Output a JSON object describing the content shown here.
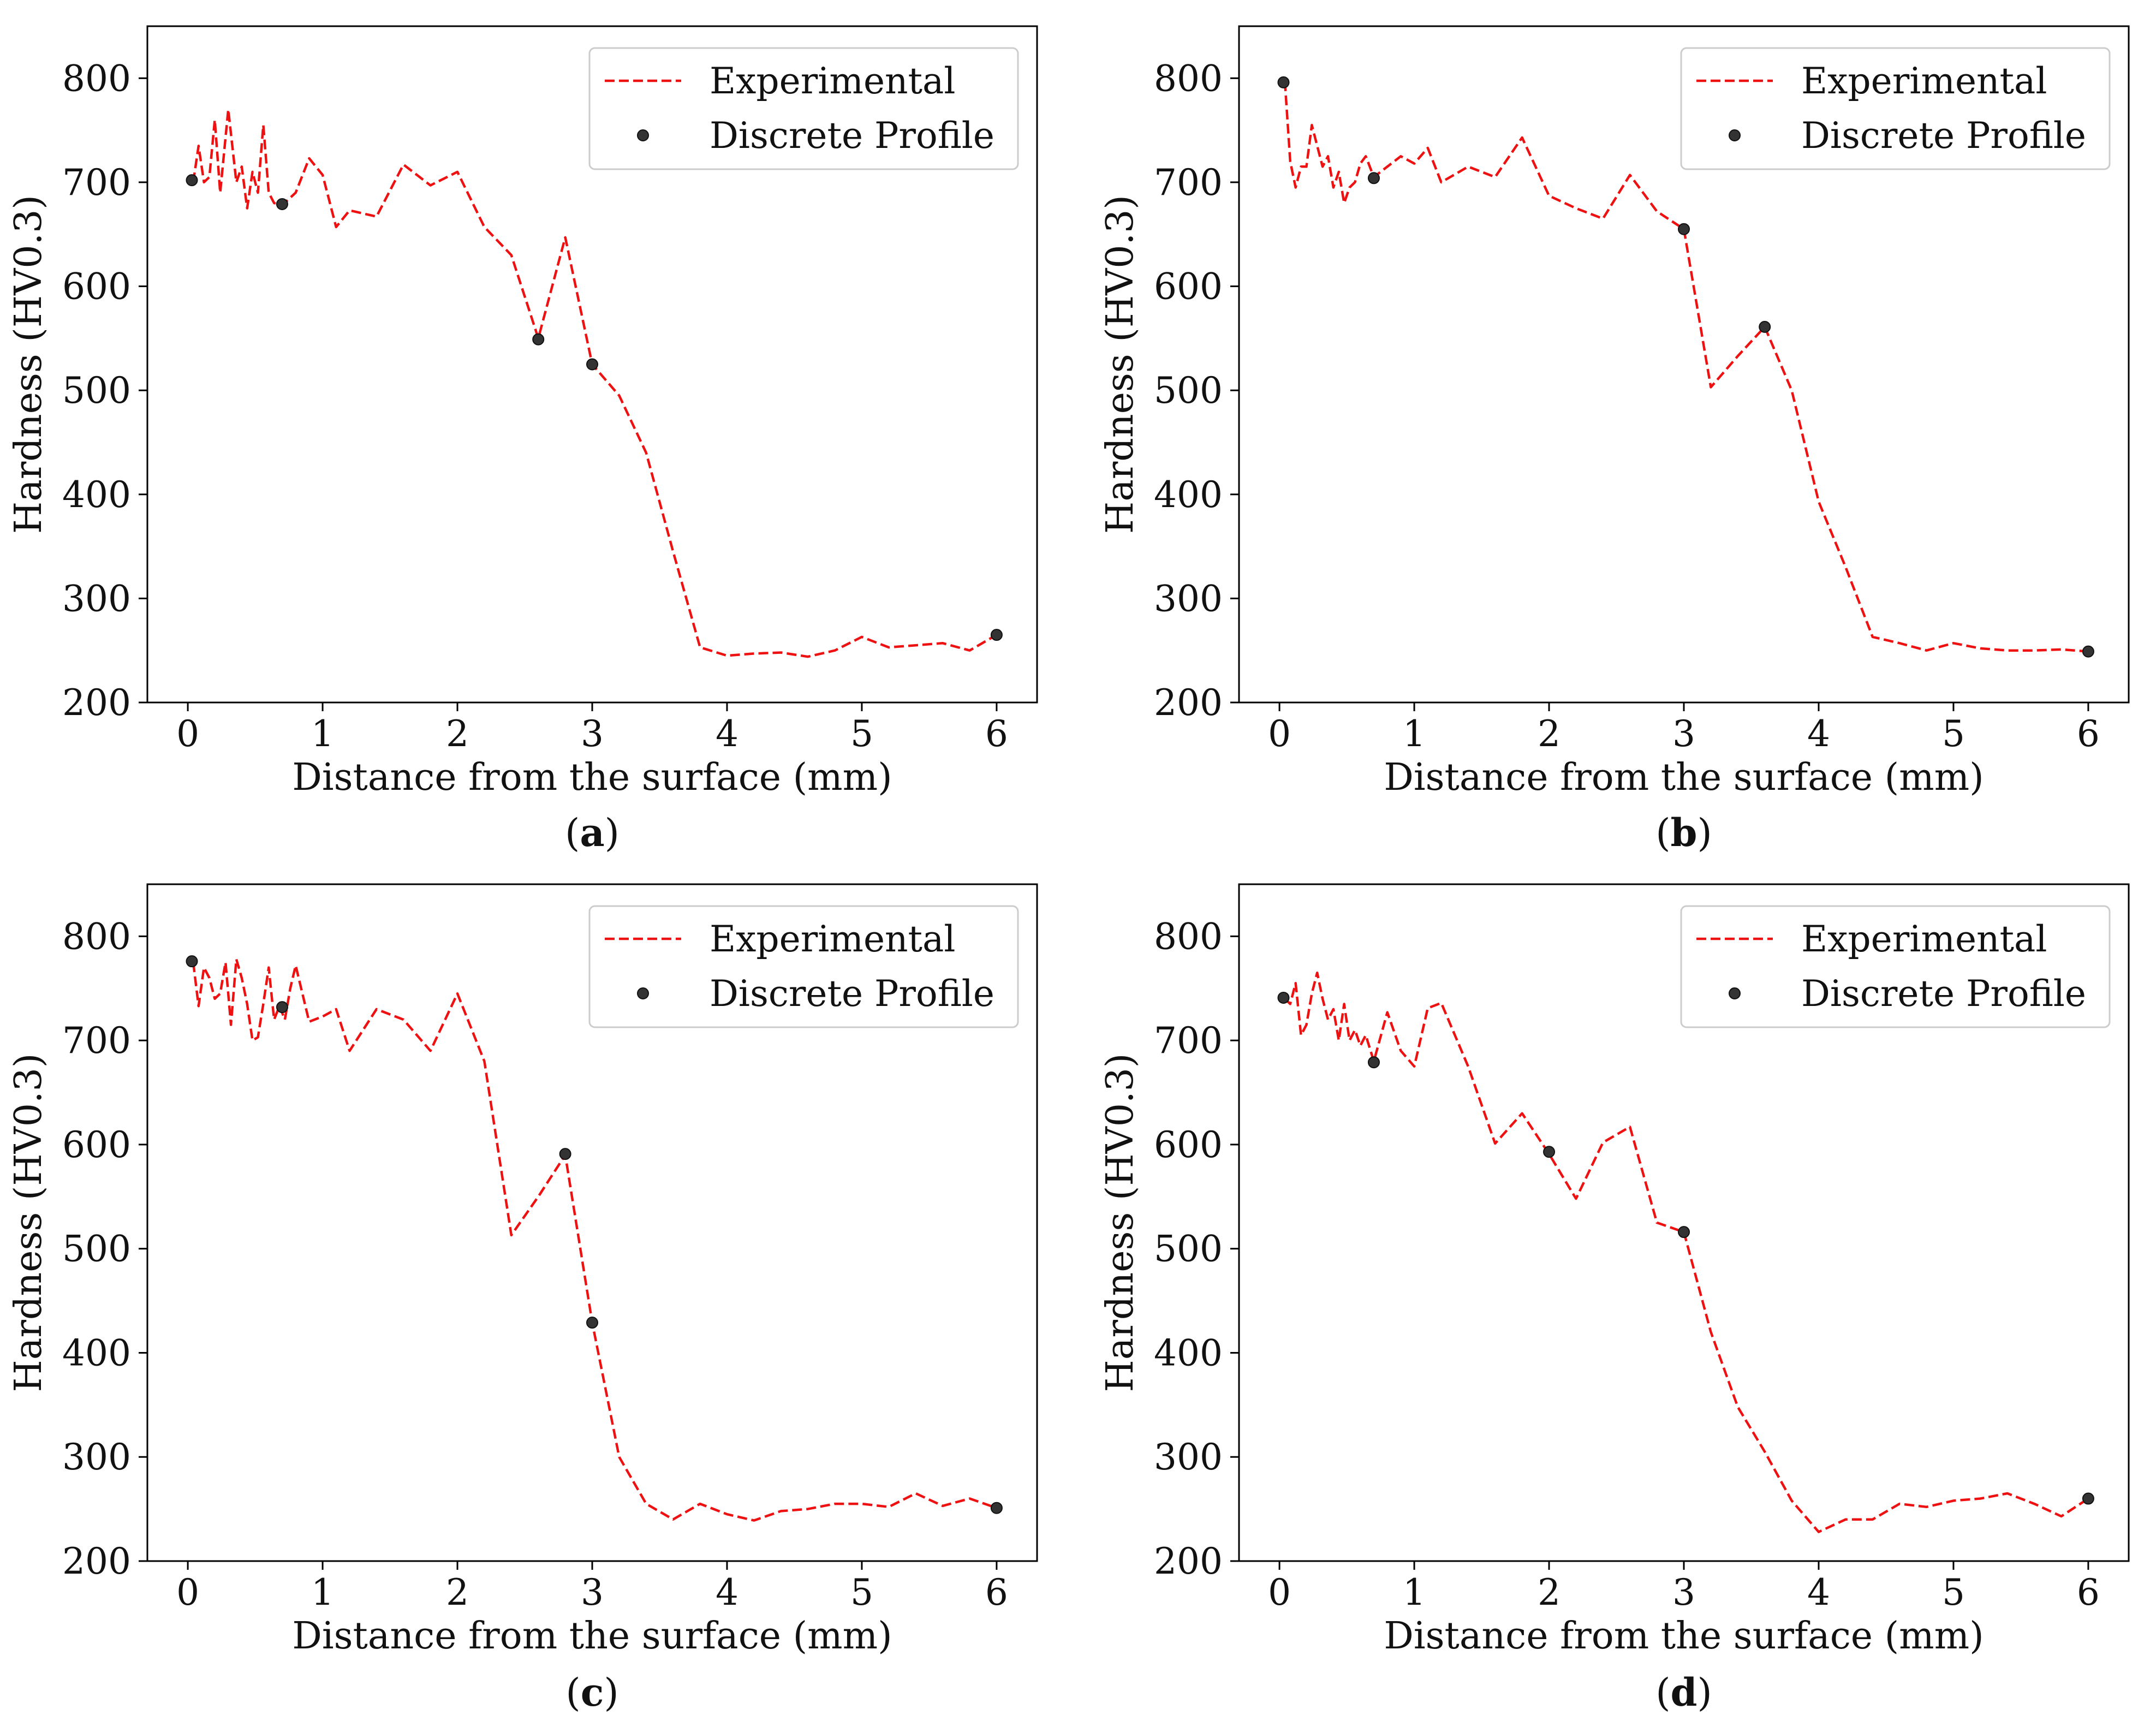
{
  "figure": {
    "series_labels": {
      "line": "Experimental",
      "points": "Discrete Profile"
    },
    "colors": {
      "line": "#ee1111",
      "points_fill": "#333333",
      "points_edge": "#111111",
      "frame": "#000000"
    }
  },
  "chart_data": [
    {
      "id": "a",
      "caption": "a",
      "type": "line",
      "xlabel": "Distance from the surface (mm)",
      "ylabel": "Hardness (HV0.3)",
      "xlim": [
        -0.3,
        6.3
      ],
      "ylim": [
        200,
        850
      ],
      "xticks": [
        0,
        1,
        2,
        3,
        4,
        5,
        6
      ],
      "yticks": [
        200,
        300,
        400,
        500,
        600,
        700,
        800
      ],
      "legend": "top-right",
      "series": [
        {
          "name": "Experimental",
          "style": "dashed",
          "x": [
            0.04,
            0.08,
            0.12,
            0.16,
            0.2,
            0.24,
            0.3,
            0.36,
            0.4,
            0.44,
            0.48,
            0.52,
            0.56,
            0.6,
            0.64,
            0.7,
            0.8,
            0.9,
            1.0,
            1.1,
            1.2,
            1.4,
            1.6,
            1.8,
            2.0,
            2.2,
            2.4,
            2.6,
            2.8,
            3.0,
            3.2,
            3.4,
            3.6,
            3.8,
            4.0,
            4.2,
            4.4,
            4.6,
            4.8,
            5.0,
            5.2,
            5.4,
            5.6,
            5.8,
            6.0
          ],
          "y": [
            700,
            735,
            700,
            705,
            760,
            690,
            770,
            700,
            715,
            675,
            710,
            690,
            755,
            690,
            680,
            678,
            690,
            723,
            707,
            657,
            673,
            667,
            717,
            697,
            710,
            657,
            630,
            550,
            647,
            525,
            495,
            440,
            345,
            253,
            245,
            247,
            248,
            244,
            250,
            263,
            253,
            255,
            257,
            250,
            265
          ]
        },
        {
          "name": "Discrete Profile",
          "style": "points",
          "x": [
            0.03,
            0.7,
            2.6,
            3.0,
            6.0
          ],
          "y": [
            702,
            679,
            549,
            525,
            265
          ]
        }
      ]
    },
    {
      "id": "b",
      "caption": "b",
      "type": "line",
      "xlabel": "Distance from the surface (mm)",
      "ylabel": "Hardness (HV0.3)",
      "xlim": [
        -0.3,
        6.3
      ],
      "ylim": [
        200,
        850
      ],
      "xticks": [
        0,
        1,
        2,
        3,
        4,
        5,
        6
      ],
      "yticks": [
        200,
        300,
        400,
        500,
        600,
        700,
        800
      ],
      "legend": "top-right",
      "series": [
        {
          "name": "Experimental",
          "style": "dashed",
          "x": [
            0.04,
            0.08,
            0.12,
            0.16,
            0.2,
            0.24,
            0.28,
            0.32,
            0.36,
            0.4,
            0.44,
            0.48,
            0.52,
            0.56,
            0.6,
            0.64,
            0.7,
            0.8,
            0.9,
            1.0,
            1.1,
            1.2,
            1.4,
            1.6,
            1.8,
            2.0,
            2.2,
            2.4,
            2.6,
            2.8,
            3.0,
            3.2,
            3.4,
            3.6,
            3.8,
            4.0,
            4.2,
            4.4,
            4.6,
            4.8,
            5.0,
            5.2,
            5.4,
            5.6,
            5.8,
            6.0
          ],
          "y": [
            797,
            720,
            695,
            715,
            715,
            755,
            735,
            715,
            725,
            695,
            710,
            680,
            695,
            700,
            718,
            725,
            705,
            715,
            725,
            718,
            733,
            700,
            715,
            705,
            743,
            687,
            675,
            665,
            707,
            672,
            655,
            503,
            533,
            561,
            500,
            393,
            330,
            263,
            257,
            250,
            257,
            252,
            250,
            250,
            251,
            249
          ]
        },
        {
          "name": "Discrete Profile",
          "style": "points",
          "x": [
            0.03,
            0.7,
            3.0,
            3.6,
            6.0
          ],
          "y": [
            796,
            704,
            655,
            561,
            249
          ]
        }
      ]
    },
    {
      "id": "c",
      "caption": "c",
      "type": "line",
      "xlabel": "Distance from the surface (mm)",
      "ylabel": "Hardness (HV0.3)",
      "xlim": [
        -0.3,
        6.3
      ],
      "ylim": [
        200,
        850
      ],
      "xticks": [
        0,
        1,
        2,
        3,
        4,
        5,
        6
      ],
      "yticks": [
        200,
        300,
        400,
        500,
        600,
        700,
        800
      ],
      "legend": "top-right",
      "series": [
        {
          "name": "Experimental",
          "style": "dashed",
          "x": [
            0.04,
            0.08,
            0.12,
            0.16,
            0.2,
            0.24,
            0.28,
            0.32,
            0.36,
            0.4,
            0.44,
            0.48,
            0.52,
            0.56,
            0.6,
            0.64,
            0.68,
            0.72,
            0.76,
            0.8,
            0.9,
            1.0,
            1.1,
            1.2,
            1.4,
            1.6,
            1.8,
            2.0,
            2.2,
            2.4,
            2.6,
            2.8,
            3.0,
            3.2,
            3.4,
            3.6,
            3.8,
            4.0,
            4.2,
            4.4,
            4.6,
            4.8,
            5.0,
            5.2,
            5.4,
            5.6,
            5.8,
            6.0
          ],
          "y": [
            775,
            733,
            770,
            760,
            740,
            745,
            775,
            715,
            778,
            760,
            735,
            700,
            703,
            735,
            770,
            720,
            733,
            720,
            750,
            772,
            718,
            723,
            730,
            690,
            730,
            720,
            690,
            745,
            680,
            513,
            550,
            590,
            429,
            300,
            255,
            240,
            255,
            245,
            239,
            248,
            250,
            255,
            255,
            252,
            265,
            253,
            260,
            251
          ]
        },
        {
          "name": "Discrete Profile",
          "style": "points",
          "x": [
            0.03,
            0.7,
            2.8,
            3.0,
            6.0
          ],
          "y": [
            776,
            732,
            591,
            429,
            251
          ]
        }
      ]
    },
    {
      "id": "d",
      "caption": "d",
      "type": "line",
      "xlabel": "Distance from the surface (mm)",
      "ylabel": "Hardness (HV0.3)",
      "xlim": [
        -0.3,
        6.3
      ],
      "ylim": [
        200,
        850
      ],
      "xticks": [
        0,
        1,
        2,
        3,
        4,
        5,
        6
      ],
      "yticks": [
        200,
        300,
        400,
        500,
        600,
        700,
        800
      ],
      "legend": "top-right",
      "series": [
        {
          "name": "Experimental",
          "style": "dashed",
          "x": [
            0.04,
            0.08,
            0.12,
            0.16,
            0.2,
            0.24,
            0.28,
            0.32,
            0.36,
            0.4,
            0.44,
            0.48,
            0.52,
            0.56,
            0.6,
            0.64,
            0.7,
            0.8,
            0.9,
            1.0,
            1.1,
            1.2,
            1.4,
            1.6,
            1.8,
            2.0,
            2.2,
            2.4,
            2.6,
            2.8,
            3.0,
            3.2,
            3.4,
            3.6,
            3.8,
            4.0,
            4.2,
            4.4,
            4.6,
            4.8,
            5.0,
            5.2,
            5.4,
            5.6,
            5.8,
            6.0
          ],
          "y": [
            740,
            735,
            755,
            705,
            715,
            745,
            765,
            740,
            720,
            730,
            700,
            735,
            700,
            710,
            695,
            705,
            680,
            727,
            690,
            675,
            731,
            736,
            675,
            601,
            630,
            591,
            548,
            602,
            617,
            525,
            516,
            420,
            348,
            305,
            258,
            228,
            240,
            240,
            255,
            252,
            258,
            260,
            265,
            255,
            243,
            260
          ]
        },
        {
          "name": "Discrete Profile",
          "style": "points",
          "x": [
            0.03,
            0.7,
            2.0,
            3.0,
            6.0
          ],
          "y": [
            741,
            679,
            593,
            516,
            260
          ]
        }
      ]
    }
  ]
}
